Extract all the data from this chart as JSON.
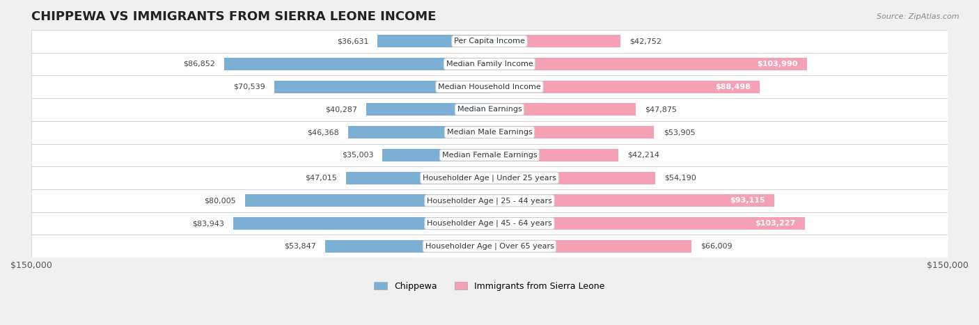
{
  "title": "CHIPPEWA VS IMMIGRANTS FROM SIERRA LEONE INCOME",
  "source": "Source: ZipAtlas.com",
  "categories": [
    "Per Capita Income",
    "Median Family Income",
    "Median Household Income",
    "Median Earnings",
    "Median Male Earnings",
    "Median Female Earnings",
    "Householder Age | Under 25 years",
    "Householder Age | 25 - 44 years",
    "Householder Age | 45 - 64 years",
    "Householder Age | Over 65 years"
  ],
  "chippewa_values": [
    36631,
    86852,
    70539,
    40287,
    46368,
    35003,
    47015,
    80005,
    83943,
    53847
  ],
  "sierra_leone_values": [
    42752,
    103990,
    88498,
    47875,
    53905,
    42214,
    54190,
    93115,
    103227,
    66009
  ],
  "chippewa_color": "#7bafd4",
  "chippewa_color_dark": "#5b8fbf",
  "sierra_leone_color": "#f4a0b5",
  "sierra_leone_color_dark": "#e8688a",
  "max_value": 150000,
  "bg_color": "#f5f5f5",
  "row_bg": "#eeeeee",
  "label_color": "#555555",
  "title_color": "#222222"
}
